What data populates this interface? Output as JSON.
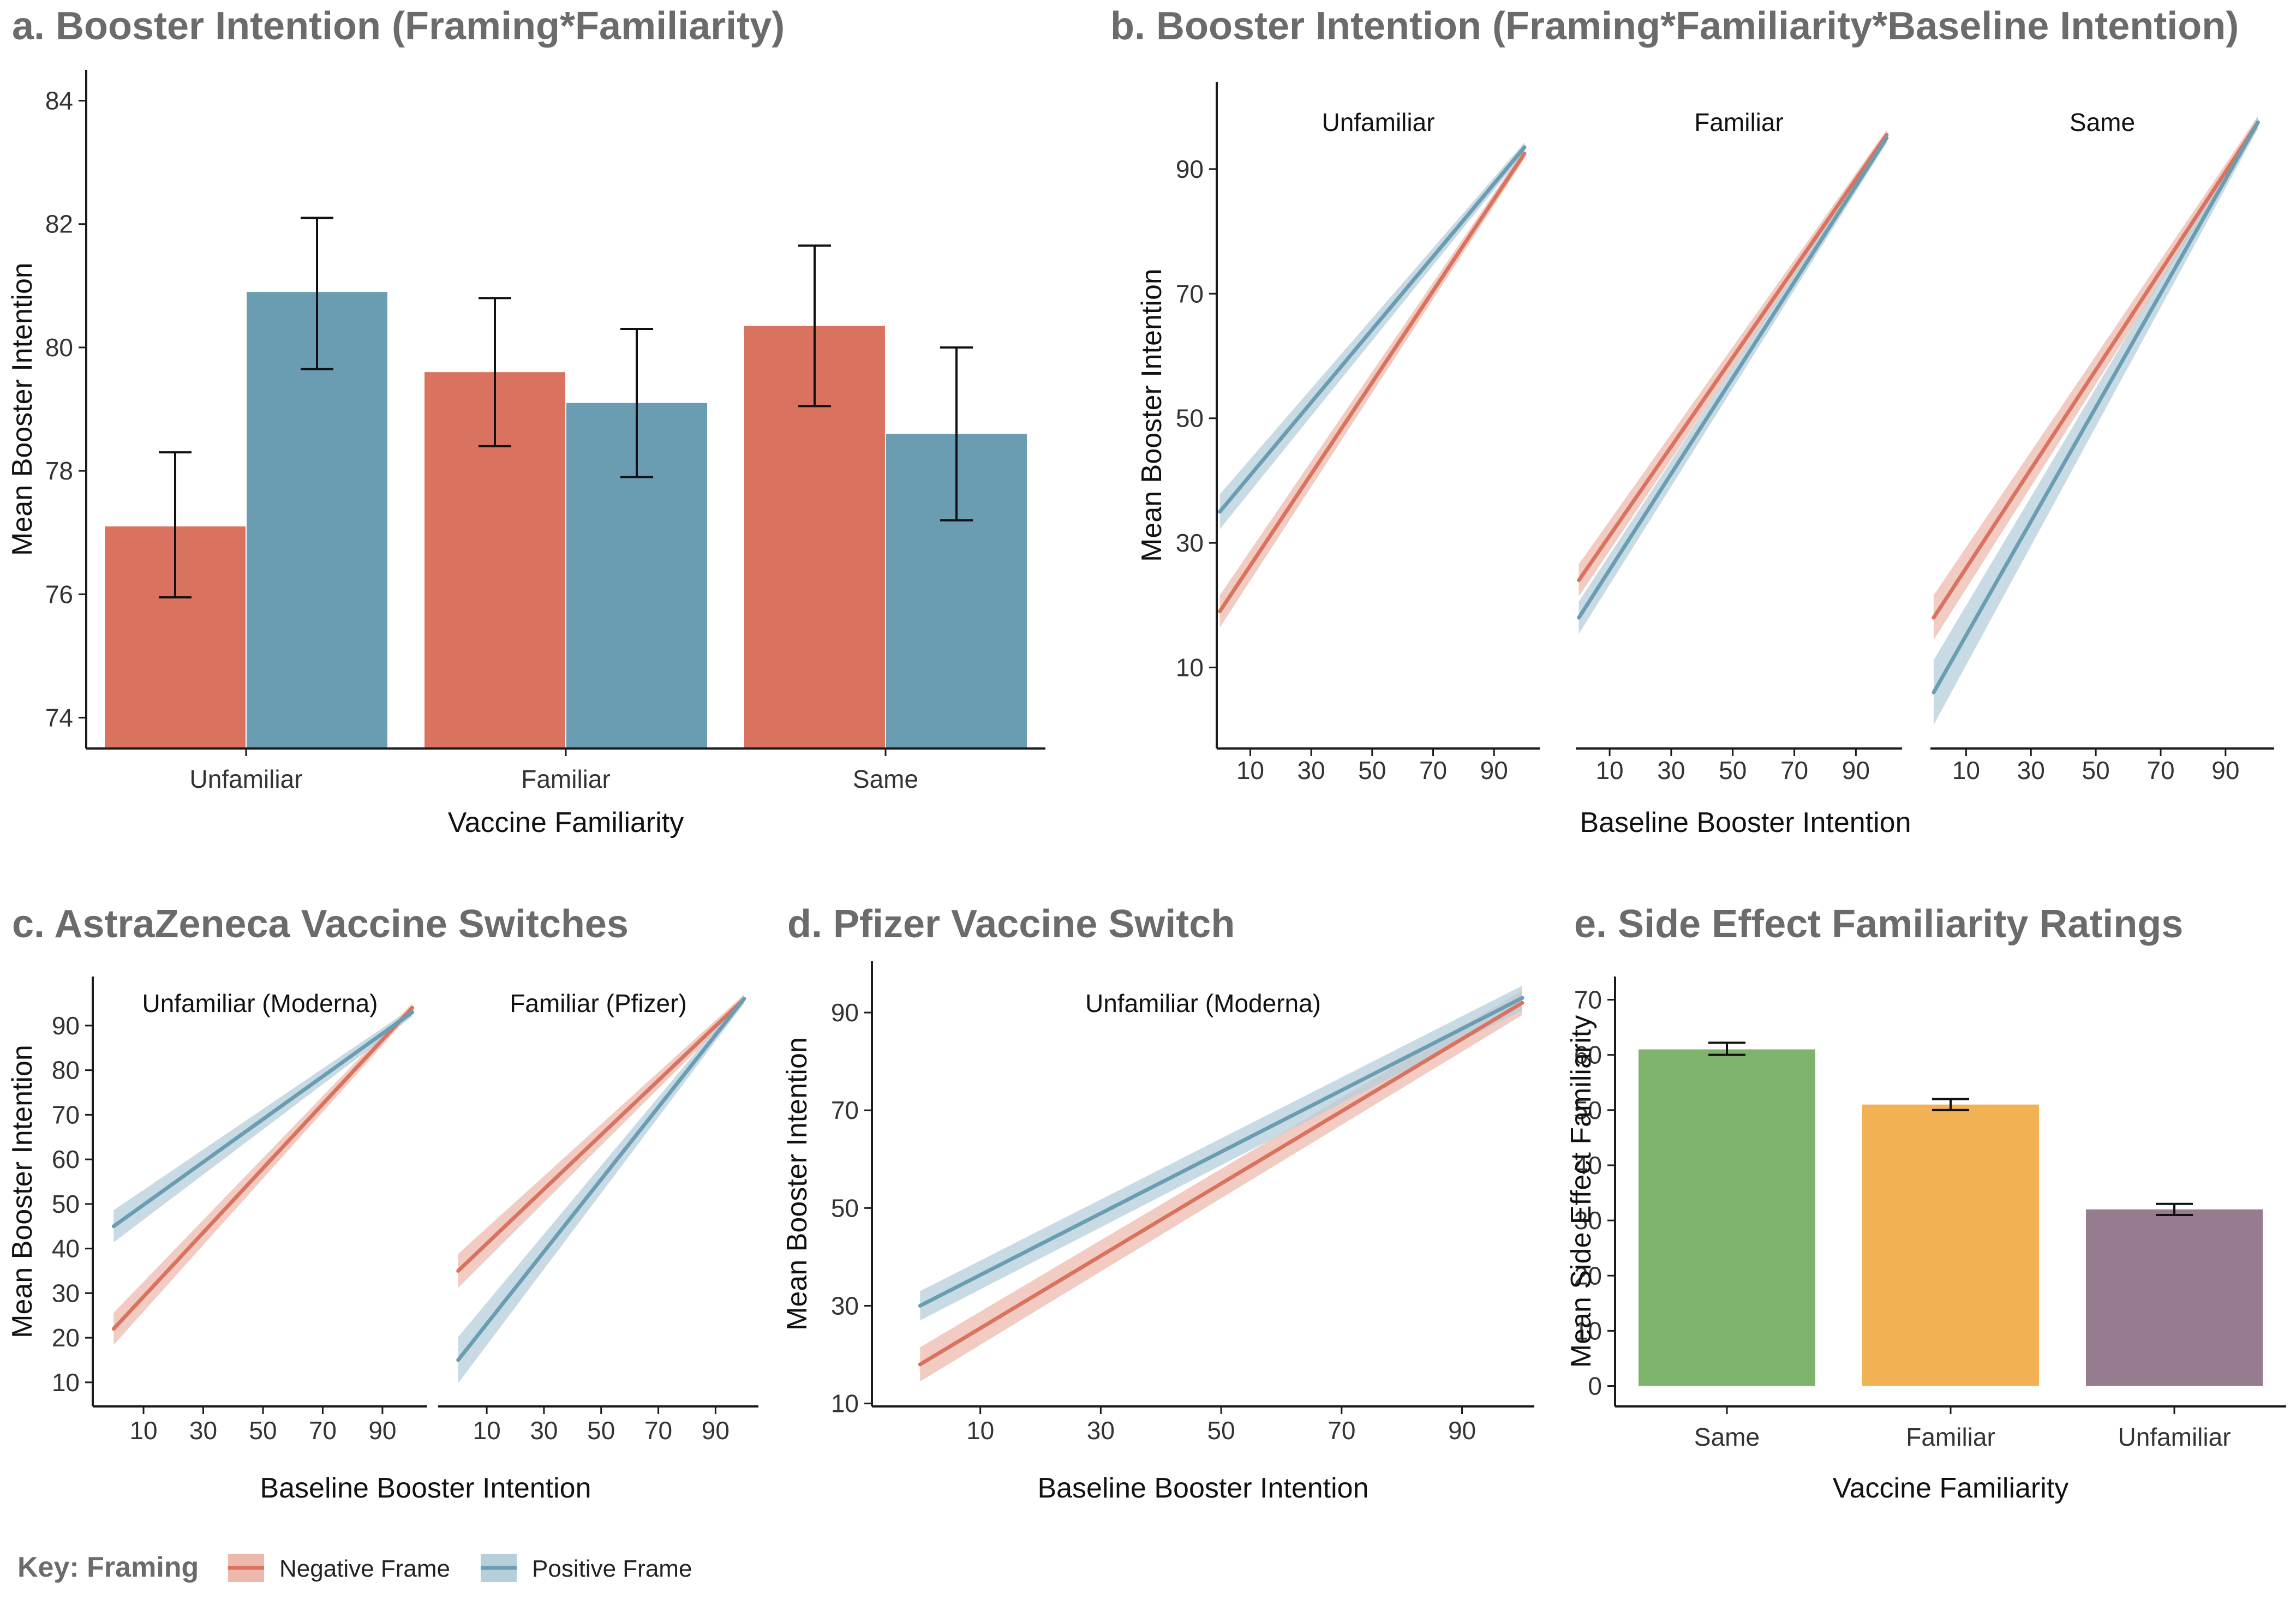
{
  "key": {
    "title": "Key: Framing",
    "items": [
      {
        "label": "Negative Frame",
        "color": "#d9735f",
        "band": "#eeb9ad"
      },
      {
        "label": "Positive Frame",
        "color": "#6b9db2",
        "band": "#b5cfdb"
      }
    ]
  },
  "chart_data": [
    {
      "id": "a",
      "type": "bar",
      "title": "a. Booster Intention (Framing*Familiarity)",
      "xlabel": "Vaccine Familiarity",
      "ylabel": "Mean Booster Intention",
      "ylim": [
        73.5,
        84.5
      ],
      "yticks": [
        74,
        76,
        78,
        80,
        82,
        84
      ],
      "categories": [
        "Unfamiliar",
        "Familiar",
        "Same"
      ],
      "series": [
        {
          "name": "Negative Frame",
          "color": "#d9735f",
          "values": [
            77.1,
            79.6,
            80.35
          ],
          "err_low": [
            75.95,
            78.4,
            79.05
          ],
          "err_high": [
            78.3,
            80.8,
            81.65
          ]
        },
        {
          "name": "Positive Frame",
          "color": "#6b9db2",
          "values": [
            80.9,
            79.1,
            78.6
          ],
          "err_low": [
            79.65,
            77.9,
            77.2
          ],
          "err_high": [
            82.1,
            80.3,
            80.0
          ]
        }
      ]
    },
    {
      "id": "b",
      "type": "line",
      "title": "b. Booster Intention (Framing*Familiarity*Baseline Intention)",
      "xlabel": "Baseline Booster Intention",
      "ylabel": "Mean Booster Intention",
      "xlim": [
        -1,
        105
      ],
      "ylim": [
        -3,
        104
      ],
      "xticks": [
        10,
        30,
        50,
        70,
        90
      ],
      "yticks": [
        10,
        30,
        50,
        70,
        90
      ],
      "facets": [
        {
          "label": "Unfamiliar",
          "lines": [
            {
              "name": "Negative Frame",
              "x": [
                0,
                100
              ],
              "y": [
                19,
                92.5
              ],
              "band": [
                2.6,
                0.8
              ]
            },
            {
              "name": "Positive Frame",
              "x": [
                0,
                100
              ],
              "y": [
                35,
                93.5
              ],
              "band": [
                2.8,
                0.8
              ]
            }
          ]
        },
        {
          "label": "Familiar",
          "lines": [
            {
              "name": "Negative Frame",
              "x": [
                0,
                100
              ],
              "y": [
                24,
                95.5
              ],
              "band": [
                2.6,
                0.8
              ]
            },
            {
              "name": "Positive Frame",
              "x": [
                0,
                100
              ],
              "y": [
                18,
                95
              ],
              "band": [
                2.6,
                0.8
              ]
            }
          ]
        },
        {
          "label": "Same",
          "lines": [
            {
              "name": "Negative Frame",
              "x": [
                0,
                100
              ],
              "y": [
                18,
                97.5
              ],
              "band": [
                3.6,
                1
              ]
            },
            {
              "name": "Positive Frame",
              "x": [
                0,
                100
              ],
              "y": [
                6,
                97.5
              ],
              "band": [
                5.2,
                1
              ]
            }
          ]
        }
      ]
    },
    {
      "id": "c",
      "type": "line",
      "title": "c. AstraZeneca Vaccine Switches",
      "xlabel": "Baseline Booster Intention",
      "ylabel": "Mean Booster Intention",
      "xlim": [
        -7,
        105
      ],
      "ylim": [
        4.6,
        101
      ],
      "xticks": [
        10,
        30,
        50,
        70,
        90
      ],
      "yticks": [
        10,
        20,
        30,
        40,
        50,
        60,
        70,
        80,
        90
      ],
      "facets": [
        {
          "label": "Unfamiliar (Moderna)",
          "lines": [
            {
              "name": "Negative Frame",
              "x": [
                0,
                100
              ],
              "y": [
                22,
                94
              ],
              "band": [
                3.6,
                1
              ]
            },
            {
              "name": "Positive Frame",
              "x": [
                0,
                100
              ],
              "y": [
                45,
                93
              ],
              "band": [
                3.6,
                1
              ]
            }
          ]
        },
        {
          "label": "Familiar (Pfizer)",
          "lines": [
            {
              "name": "Negative Frame",
              "x": [
                0,
                100
              ],
              "y": [
                35,
                96
              ],
              "band": [
                3.8,
                1
              ]
            },
            {
              "name": "Positive Frame",
              "x": [
                0,
                100
              ],
              "y": [
                15,
                96
              ],
              "band": [
                5.2,
                1
              ]
            }
          ]
        }
      ]
    },
    {
      "id": "d",
      "type": "line",
      "title": "d. Pfizer Vaccine Switch",
      "xlabel": "Baseline Booster Intention",
      "ylabel": "Mean Booster Intention",
      "xlim": [
        -8,
        102
      ],
      "ylim": [
        9.4,
        100.5
      ],
      "xticks": [
        10,
        30,
        50,
        70,
        90
      ],
      "yticks": [
        10,
        30,
        50,
        70,
        90
      ],
      "facets": [
        {
          "label": "Unfamiliar (Moderna)",
          "lines": [
            {
              "name": "Negative Frame",
              "x": [
                0,
                100
              ],
              "y": [
                18,
                92
              ],
              "band": [
                3.5,
                2.5
              ]
            },
            {
              "name": "Positive Frame",
              "x": [
                0,
                100
              ],
              "y": [
                30,
                93
              ],
              "band": [
                3,
                2.5
              ]
            }
          ]
        }
      ]
    },
    {
      "id": "e",
      "type": "bar",
      "title": "e. Side Effect Familiarity Ratings",
      "xlabel": "Vaccine Familiarity",
      "ylabel": "Mean Side Effect Familiarity",
      "ylim": [
        -3.7,
        74.2
      ],
      "yticks": [
        0,
        10,
        20,
        30,
        40,
        50,
        60,
        70
      ],
      "categories": [
        "Same",
        "Familiar",
        "Unfamiliar"
      ],
      "values": [
        61,
        51,
        32
      ],
      "colors": [
        "#7eb36e",
        "#f2b254",
        "#977b8e"
      ],
      "err_low": [
        60,
        50,
        31
      ],
      "err_high": [
        62.2,
        52,
        33
      ]
    }
  ]
}
